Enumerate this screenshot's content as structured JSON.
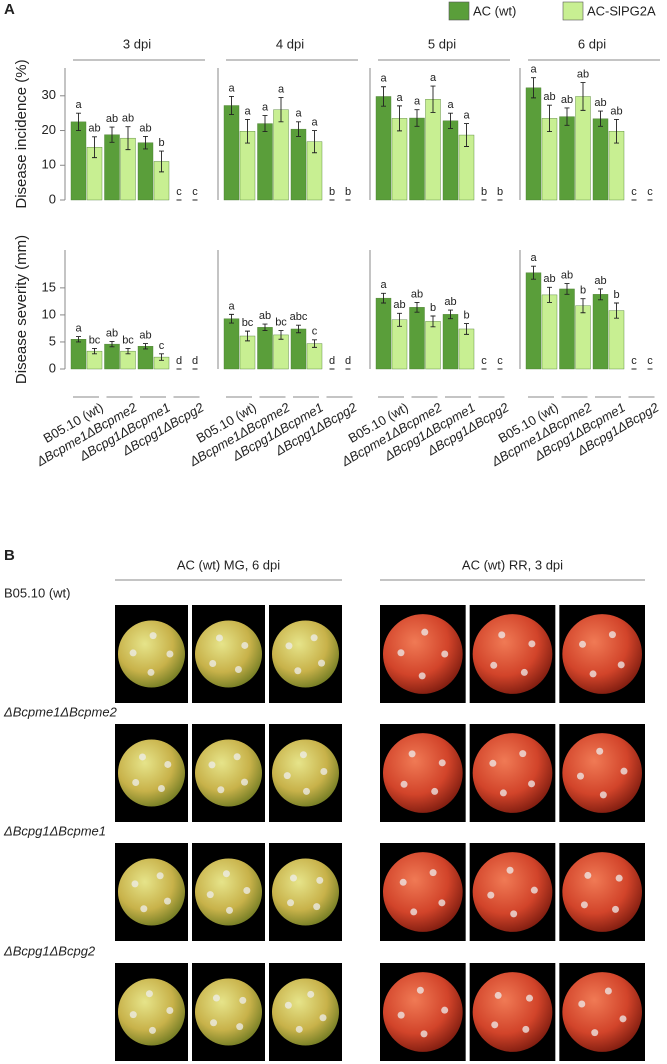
{
  "panel_labels": [
    "A",
    "B"
  ],
  "chart_data": [
    {
      "type": "bar",
      "title": "3 dpi",
      "ylabel": "Disease incidence (%)",
      "ylim": [
        0,
        38
      ],
      "yticks": [
        0,
        10,
        20,
        30
      ],
      "series": [
        {
          "name": "AC (wt)",
          "color": "#5a9e3a",
          "values": [
            22.5,
            18.8,
            16.5,
            0
          ],
          "errors": [
            2.5,
            2.2,
            1.8,
            0
          ],
          "letters": [
            "a",
            "ab",
            "ab",
            "c"
          ]
        },
        {
          "name": "AC-SlPG2A",
          "color": "#c8ef92",
          "values": [
            15.2,
            17.8,
            11.1,
            0
          ],
          "errors": [
            3.0,
            3.3,
            3.0,
            0
          ],
          "letters": [
            "ab",
            "ab",
            "b",
            "c"
          ]
        }
      ]
    },
    {
      "type": "bar",
      "title": "4 dpi",
      "ylim": [
        0,
        38
      ],
      "series": [
        {
          "color": "#5a9e3a",
          "values": [
            27.2,
            22.0,
            20.4,
            0
          ],
          "errors": [
            2.6,
            2.3,
            2.1,
            0
          ],
          "letters": [
            "a",
            "a",
            "a",
            "b"
          ]
        },
        {
          "color": "#c8ef92",
          "values": [
            19.8,
            26.0,
            16.8,
            0
          ],
          "errors": [
            3.4,
            3.5,
            3.2,
            0
          ],
          "letters": [
            "a",
            "a",
            "a",
            "b"
          ]
        }
      ]
    },
    {
      "type": "bar",
      "title": "5 dpi",
      "ylim": [
        0,
        38
      ],
      "series": [
        {
          "color": "#5a9e3a",
          "values": [
            29.8,
            23.6,
            22.8,
            0
          ],
          "errors": [
            2.8,
            2.4,
            2.2,
            0
          ],
          "letters": [
            "a",
            "a",
            "a",
            "b"
          ]
        },
        {
          "color": "#c8ef92",
          "values": [
            23.5,
            29.0,
            18.7,
            0
          ],
          "errors": [
            3.6,
            3.8,
            3.3,
            0
          ],
          "letters": [
            "a",
            "a",
            "a",
            "b"
          ]
        }
      ]
    },
    {
      "type": "bar",
      "title": "6 dpi",
      "ylim": [
        0,
        38
      ],
      "series": [
        {
          "color": "#5a9e3a",
          "values": [
            32.3,
            24.0,
            23.4,
            0
          ],
          "errors": [
            2.9,
            2.5,
            2.2,
            0
          ],
          "letters": [
            "a",
            "ab",
            "ab",
            "c"
          ]
        },
        {
          "color": "#c8ef92",
          "values": [
            23.5,
            29.8,
            19.8,
            0
          ],
          "errors": [
            3.8,
            4.0,
            3.4,
            0
          ],
          "letters": [
            "ab",
            "ab",
            "ab",
            "c"
          ]
        }
      ]
    },
    {
      "type": "bar",
      "ylabel": "Disease severity (mm)",
      "ylim": [
        0,
        22
      ],
      "yticks": [
        0,
        5,
        10,
        15
      ],
      "categories": [
        "B05.10 (wt)",
        "ΔBcpme1ΔBcpme2",
        "ΔBcpg1ΔBcpme1",
        "ΔBcpg1ΔBcpg2"
      ],
      "series": [
        {
          "color": "#5a9e3a",
          "values": [
            5.5,
            4.6,
            4.2,
            0
          ],
          "errors": [
            0.5,
            0.5,
            0.5,
            0
          ],
          "letters": [
            "a",
            "ab",
            "ab",
            "d"
          ]
        },
        {
          "color": "#c8ef92",
          "values": [
            3.3,
            3.3,
            2.2,
            0
          ],
          "errors": [
            0.5,
            0.5,
            0.6,
            0
          ],
          "letters": [
            "bc",
            "bc",
            "c",
            "d"
          ]
        }
      ]
    },
    {
      "type": "bar",
      "ylim": [
        0,
        22
      ],
      "categories": [
        "B05.10 (wt)",
        "ΔBcpme1ΔBcpme2",
        "ΔBcpg1ΔBcpme1",
        "ΔBcpg1ΔBcpg2"
      ],
      "series": [
        {
          "color": "#5a9e3a",
          "values": [
            9.3,
            7.7,
            7.4,
            0
          ],
          "errors": [
            0.8,
            0.6,
            0.7,
            0
          ],
          "letters": [
            "a",
            "ab",
            "abc",
            "d"
          ]
        },
        {
          "color": "#c8ef92",
          "values": [
            6.1,
            6.3,
            4.7,
            0
          ],
          "errors": [
            0.9,
            0.8,
            0.7,
            0
          ],
          "letters": [
            "bc",
            "bc",
            "c",
            "d"
          ]
        }
      ]
    },
    {
      "type": "bar",
      "ylim": [
        0,
        22
      ],
      "categories": [
        "B05.10 (wt)",
        "ΔBcpme1ΔBcpme2",
        "ΔBcpg1ΔBcpme1",
        "ΔBcpg1ΔBcpg2"
      ],
      "series": [
        {
          "color": "#5a9e3a",
          "values": [
            13.1,
            11.4,
            10.1,
            0
          ],
          "errors": [
            0.9,
            0.9,
            0.8,
            0
          ],
          "letters": [
            "a",
            "ab",
            "ab",
            "c"
          ]
        },
        {
          "color": "#c8ef92",
          "values": [
            9.1,
            8.8,
            7.4,
            0
          ],
          "errors": [
            1.2,
            1.0,
            1.0,
            0
          ],
          "letters": [
            "ab",
            "b",
            "b",
            "c"
          ]
        }
      ]
    },
    {
      "type": "bar",
      "ylim": [
        0,
        22
      ],
      "categories": [
        "B05.10 (wt)",
        "ΔBcpme1ΔBcpme2",
        "ΔBcpg1ΔBcpme1",
        "ΔBcpg1ΔBcpg2"
      ],
      "series": [
        {
          "color": "#5a9e3a",
          "values": [
            17.8,
            14.8,
            13.8,
            0
          ],
          "errors": [
            1.2,
            1.0,
            1.0,
            0
          ],
          "letters": [
            "a",
            "ab",
            "ab",
            "c"
          ]
        },
        {
          "color": "#c8ef92",
          "values": [
            13.7,
            11.7,
            10.8,
            0
          ],
          "errors": [
            1.4,
            1.3,
            1.4,
            0
          ],
          "letters": [
            "ab",
            "b",
            "b",
            "c"
          ]
        }
      ]
    }
  ],
  "panel_b": {
    "columns": [
      "AC (wt) MG, 6 dpi",
      "AC (wt) RR, 3 dpi"
    ],
    "rows": [
      "B05.10 (wt)",
      "ΔBcpme1ΔBcpme2",
      "ΔBcpg1ΔBcpme1",
      "ΔBcpg1ΔBcpg2"
    ]
  }
}
